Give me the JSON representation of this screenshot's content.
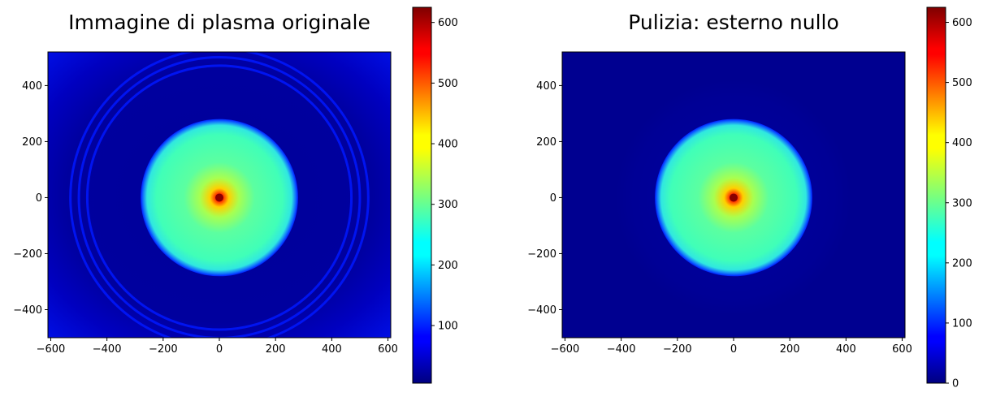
{
  "chart_data": [
    {
      "type": "heatmap",
      "title": "Immagine di plasma originale",
      "colormap": "jet",
      "xlim": [
        -610,
        610
      ],
      "ylim": [
        -500,
        520
      ],
      "xticks": [
        -600,
        -400,
        -200,
        0,
        200,
        400,
        600
      ],
      "yticks": [
        -400,
        -200,
        0,
        200,
        400
      ],
      "features": {
        "core_disc": {
          "center": [
            0,
            0
          ],
          "radius": 280,
          "value": 290
        },
        "central_peak": {
          "center": [
            0,
            0
          ],
          "value": 620
        },
        "background_value": 30,
        "outer_rings": [
          {
            "radius": 470,
            "value": 70
          },
          {
            "radius": 500,
            "value": 70
          },
          {
            "radius": 530,
            "value": 70
          }
        ],
        "corner_value": 70
      },
      "colorbar": {
        "vmin": 5,
        "vmax": 625,
        "ticks": [
          100,
          200,
          300,
          400,
          500,
          600
        ]
      }
    },
    {
      "type": "heatmap",
      "title": "Pulizia: esterno nullo",
      "colormap": "jet",
      "xlim": [
        -610,
        610
      ],
      "ylim": [
        -500,
        520
      ],
      "xticks": [
        -600,
        -400,
        -200,
        0,
        200,
        400,
        600
      ],
      "yticks": [
        -400,
        -200,
        0,
        200,
        400
      ],
      "features": {
        "core_disc": {
          "center": [
            0,
            0
          ],
          "radius": 280,
          "value": 290
        },
        "central_peak": {
          "center": [
            0,
            0
          ],
          "value": 620
        },
        "background_value": 0,
        "halo": {
          "radius": 420,
          "value": 15
        }
      },
      "colorbar": {
        "vmin": 0,
        "vmax": 625,
        "ticks": [
          0,
          100,
          200,
          300,
          400,
          500,
          600
        ]
      }
    }
  ]
}
